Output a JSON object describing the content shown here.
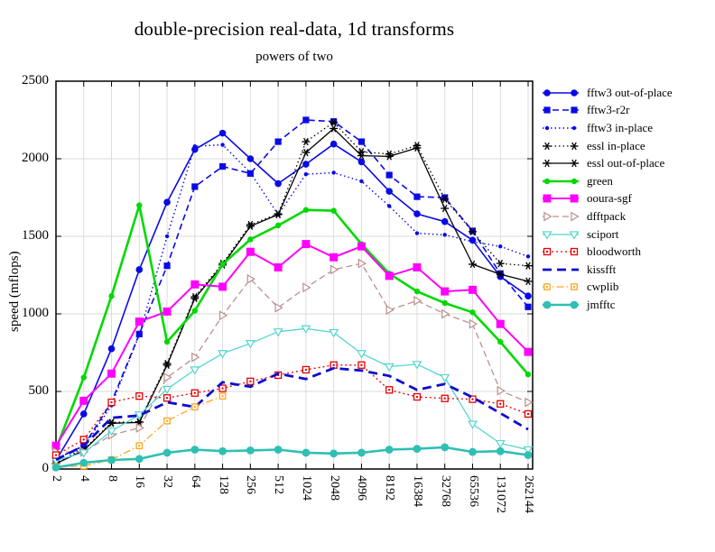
{
  "chart_data": {
    "type": "line",
    "title": "double-precision real-data, 1d transforms",
    "subtitle": "powers of two",
    "ylabel": "speed (mflops)",
    "xlabel": "",
    "ylim": [
      0,
      2500
    ],
    "yticks": [
      0,
      500,
      1000,
      1500,
      2000,
      2500
    ],
    "grid": true,
    "legend_position": "right",
    "x_categories": [
      "2",
      "4",
      "8",
      "16",
      "32",
      "64",
      "128",
      "256",
      "512",
      "1024",
      "2048",
      "4096",
      "8192",
      "16384",
      "32768",
      "65536",
      "131072",
      "262144"
    ],
    "series": [
      {
        "name": "fftw3 out-of-place",
        "color": "#0a0ae6",
        "line": "solid",
        "width": 1.6,
        "marker": "circle",
        "msize": 3.8,
        "values": [
          55,
          355,
          775,
          1285,
          1720,
          2060,
          2165,
          2000,
          1840,
          1965,
          2095,
          1980,
          1790,
          1645,
          1595,
          1475,
          1240,
          1115
        ]
      },
      {
        "name": "fftw3-r2r",
        "color": "#0a0ae6",
        "line": "dashed",
        "width": 1.6,
        "marker": "square",
        "msize": 7.2,
        "values": [
          65,
          150,
          430,
          870,
          1310,
          1820,
          1950,
          1905,
          2110,
          2250,
          2240,
          2110,
          1895,
          1755,
          1750,
          1535,
          1260,
          1045
        ]
      },
      {
        "name": "fftw3 in-place",
        "color": "#0a0ae6",
        "line": "dotted",
        "width": 1.4,
        "marker": "dot",
        "msize": 2.2,
        "values": [
          30,
          140,
          410,
          865,
          1500,
          2080,
          2090,
          1910,
          1640,
          1900,
          1910,
          1855,
          1695,
          1520,
          1510,
          1465,
          1435,
          1370
        ]
      },
      {
        "name": "essl in-place",
        "color": "#000000",
        "line": "dotted",
        "width": 1.3,
        "marker": "asterisk",
        "msize": 4.5,
        "values": [
          35,
          125,
          300,
          305,
          680,
          1110,
          1325,
          1575,
          1645,
          2110,
          2235,
          2045,
          2030,
          2085,
          1740,
          1530,
          1325,
          1310
        ]
      },
      {
        "name": "essl out-of-place",
        "color": "#000000",
        "line": "solid",
        "width": 1.3,
        "marker": "asterisk",
        "msize": 4.5,
        "values": [
          35,
          120,
          295,
          300,
          670,
          1100,
          1315,
          1565,
          1640,
          2040,
          2195,
          2020,
          2015,
          2070,
          1680,
          1320,
          1255,
          1210
        ]
      },
      {
        "name": "green",
        "color": "#00d900",
        "line": "solid",
        "width": 2.6,
        "marker": "circle",
        "msize": 3.2,
        "values": [
          130,
          590,
          1115,
          1700,
          820,
          1020,
          1320,
          1480,
          1570,
          1670,
          1665,
          1450,
          1260,
          1145,
          1070,
          1010,
          820,
          610
        ]
      },
      {
        "name": "ooura-sgf",
        "color": "#ff00ff",
        "line": "solid",
        "width": 2.0,
        "marker": "square",
        "msize": 9,
        "values": [
          150,
          440,
          615,
          950,
          1015,
          1190,
          1175,
          1400,
          1300,
          1450,
          1365,
          1435,
          1245,
          1300,
          1145,
          1155,
          935,
          755
        ]
      },
      {
        "name": "dfftpack",
        "color": "#bc8f8f",
        "line": "dashed",
        "width": 1.3,
        "marker": "tri-right",
        "msize": 4.4,
        "values": [
          110,
          110,
          220,
          265,
          590,
          720,
          990,
          1225,
          1040,
          1170,
          1285,
          1325,
          1025,
          1085,
          1000,
          935,
          505,
          430
        ]
      },
      {
        "name": "sciport",
        "color": "#53d6cd",
        "line": "solid",
        "width": 1.3,
        "marker": "tri-down",
        "msize": 4.4,
        "values": [
          55,
          105,
          245,
          350,
          515,
          640,
          745,
          810,
          885,
          905,
          880,
          745,
          660,
          675,
          590,
          290,
          165,
          125
        ]
      },
      {
        "name": "bloodworth",
        "color": "#e60000",
        "line": "dotted2",
        "width": 1.3,
        "marker": "square-open",
        "msize": 7,
        "values": [
          90,
          190,
          430,
          470,
          458,
          490,
          520,
          565,
          605,
          640,
          670,
          670,
          510,
          465,
          455,
          450,
          420,
          355
        ]
      },
      {
        "name": "kissfft",
        "color": "#0d0dcf",
        "line": "dashed-thick",
        "width": 2.8,
        "marker": "none",
        "msize": 0,
        "values": [
          60,
          150,
          330,
          345,
          430,
          400,
          560,
          530,
          615,
          580,
          650,
          635,
          600,
          510,
          548,
          462,
          360,
          255
        ]
      },
      {
        "name": "cwplib",
        "color": "#ffa520",
        "line": "dashdot",
        "width": 1.3,
        "marker": "square-open",
        "msize": 6.4,
        "values": [
          15,
          20,
          60,
          150,
          310,
          400,
          470,
          null,
          null,
          null,
          null,
          null,
          null,
          null,
          null,
          null,
          null,
          null
        ]
      },
      {
        "name": "jmfftc",
        "color": "#2fbfb3",
        "line": "solid",
        "width": 2.6,
        "marker": "circle",
        "msize": 4.4,
        "values": [
          10,
          40,
          58,
          65,
          105,
          125,
          115,
          120,
          125,
          105,
          100,
          105,
          125,
          130,
          140,
          110,
          115,
          90
        ]
      }
    ]
  }
}
